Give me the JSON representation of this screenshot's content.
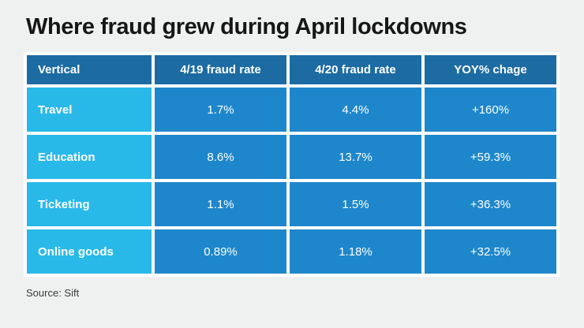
{
  "page": {
    "background_color": "#eff1f0"
  },
  "colors": {
    "header_blue": "#1c6ba3",
    "data_cell_blue": "#1e87cb",
    "row_label_cyan": "#28b9e9",
    "grid_white": "#ffffff",
    "title_text": "#161616",
    "cell_text": "#ffffff",
    "source_text": "#3a3a3a"
  },
  "chart_data": {
    "type": "table",
    "title": "Where fraud grew during April lockdowns",
    "columns": [
      "Vertical",
      "4/19 fraud rate",
      "4/20 fraud rate",
      "YOY% chage"
    ],
    "rows": [
      [
        "Travel",
        "1.7%",
        "4.4%",
        "+160%"
      ],
      [
        "Education",
        "8.6%",
        "13.7%",
        "+59.3%"
      ],
      [
        "Ticketing",
        "1.1%",
        "1.5%",
        "+36.3%"
      ],
      [
        "Online goods",
        "0.89%",
        "1.18%",
        "+32.5%"
      ]
    ],
    "source_label": "Source: Sift",
    "layout": {
      "legend": "none",
      "grid": "4px white gaps between cells",
      "first_column_alignment": "left",
      "value_alignment": "center"
    }
  }
}
